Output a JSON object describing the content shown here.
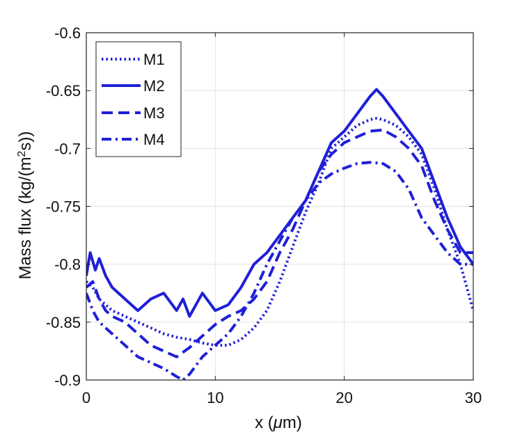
{
  "chart_data": {
    "type": "line",
    "title": "",
    "xlabel": "x (μm)",
    "xlabel_prefix": "x (",
    "xlabel_unit_greek": "μ",
    "xlabel_unit_rest": "m)",
    "ylabel_prefix": "Mass flux (kg/(m",
    "ylabel_sup": "2",
    "ylabel_suffix": "s))",
    "xlim": [
      0,
      30
    ],
    "ylim": [
      -0.9,
      -0.6
    ],
    "xticks": [
      0,
      10,
      20,
      30
    ],
    "xtick_labels": [
      "0",
      "10",
      "20",
      "30"
    ],
    "yticks": [
      -0.9,
      -0.85,
      -0.8,
      -0.75,
      -0.7,
      -0.65,
      -0.6
    ],
    "ytick_labels": [
      "-0.9",
      "-0.85",
      "-0.8",
      "-0.75",
      "-0.7",
      "-0.65",
      "-0.6"
    ],
    "grid": true,
    "legend_position": "top-left",
    "line_color": "#1f1fd8",
    "series": [
      {
        "name": "M1",
        "style": "dotted",
        "x": [
          0,
          0.5,
          1,
          1.5,
          2,
          3,
          4,
          5,
          6,
          7,
          8,
          9,
          10,
          11,
          12,
          13,
          14,
          15,
          16,
          17,
          18,
          19,
          20,
          21,
          22,
          22.5,
          23,
          24,
          25,
          26,
          27,
          28,
          29,
          30
        ],
        "y": [
          -0.815,
          -0.82,
          -0.83,
          -0.835,
          -0.84,
          -0.845,
          -0.85,
          -0.855,
          -0.86,
          -0.863,
          -0.865,
          -0.868,
          -0.87,
          -0.87,
          -0.865,
          -0.855,
          -0.84,
          -0.815,
          -0.785,
          -0.755,
          -0.73,
          -0.7,
          -0.69,
          -0.68,
          -0.675,
          -0.674,
          -0.675,
          -0.68,
          -0.69,
          -0.705,
          -0.735,
          -0.77,
          -0.8,
          -0.84
        ]
      },
      {
        "name": "M2",
        "style": "solid",
        "x": [
          0,
          0.3,
          0.7,
          1,
          1.5,
          2,
          3,
          4,
          5,
          6,
          7,
          7.5,
          8,
          9,
          10,
          11,
          12,
          13,
          14,
          15,
          16,
          17,
          18,
          19,
          20,
          21,
          22,
          22.5,
          23,
          24,
          25,
          26,
          27,
          28,
          29,
          30
        ],
        "y": [
          -0.81,
          -0.79,
          -0.805,
          -0.795,
          -0.81,
          -0.82,
          -0.83,
          -0.84,
          -0.83,
          -0.825,
          -0.84,
          -0.83,
          -0.845,
          -0.825,
          -0.84,
          -0.835,
          -0.82,
          -0.8,
          -0.79,
          -0.775,
          -0.76,
          -0.745,
          -0.72,
          -0.695,
          -0.685,
          -0.67,
          -0.655,
          -0.649,
          -0.655,
          -0.67,
          -0.685,
          -0.7,
          -0.73,
          -0.76,
          -0.785,
          -0.8
        ]
      },
      {
        "name": "M3",
        "style": "dashed",
        "x": [
          0,
          0.5,
          1,
          1.5,
          2,
          3,
          4,
          5,
          6,
          7,
          8,
          9,
          10,
          11,
          12,
          13,
          14,
          15,
          16,
          17,
          18,
          19,
          20,
          21,
          22,
          23,
          24,
          25,
          26,
          27,
          28,
          29,
          30
        ],
        "y": [
          -0.82,
          -0.815,
          -0.83,
          -0.84,
          -0.845,
          -0.85,
          -0.86,
          -0.87,
          -0.875,
          -0.88,
          -0.872,
          -0.862,
          -0.852,
          -0.845,
          -0.84,
          -0.83,
          -0.815,
          -0.79,
          -0.77,
          -0.745,
          -0.72,
          -0.705,
          -0.695,
          -0.69,
          -0.685,
          -0.684,
          -0.69,
          -0.7,
          -0.715,
          -0.745,
          -0.77,
          -0.79,
          -0.79
        ]
      },
      {
        "name": "M4",
        "style": "dashdot",
        "x": [
          0,
          0.5,
          1,
          1.5,
          2,
          3,
          4,
          5,
          6,
          7,
          7.5,
          8,
          9,
          10,
          11,
          12,
          13,
          14,
          15,
          16,
          17,
          18,
          19,
          20,
          21,
          22,
          23,
          24,
          25,
          26,
          27,
          28,
          29,
          30
        ],
        "y": [
          -0.825,
          -0.84,
          -0.85,
          -0.855,
          -0.86,
          -0.87,
          -0.88,
          -0.885,
          -0.89,
          -0.897,
          -0.9,
          -0.895,
          -0.88,
          -0.87,
          -0.86,
          -0.845,
          -0.825,
          -0.8,
          -0.78,
          -0.76,
          -0.745,
          -0.73,
          -0.722,
          -0.717,
          -0.713,
          -0.712,
          -0.713,
          -0.72,
          -0.735,
          -0.76,
          -0.775,
          -0.79,
          -0.8,
          -0.8
        ]
      }
    ]
  }
}
